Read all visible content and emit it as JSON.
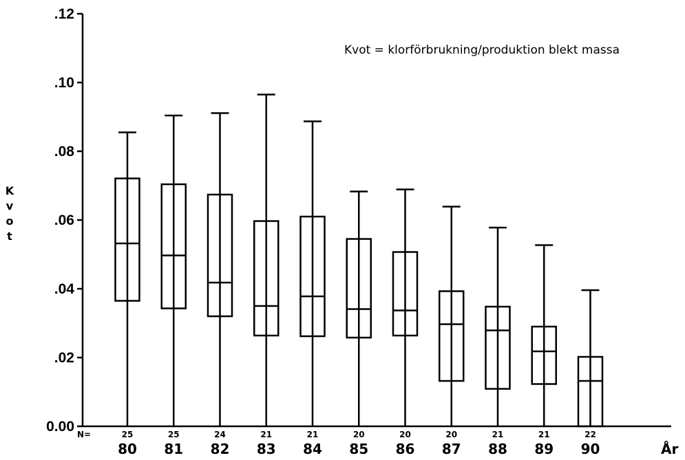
{
  "chart_data": {
    "type": "box",
    "annotation": "Kvot = klorförbrukning/produktion blekt massa",
    "ylabel": "Kvot",
    "xlabel": "År",
    "n_prefix": "N=",
    "ylim": [
      0,
      0.12
    ],
    "yticks": [
      {
        "value": 0.0,
        "label": "0.00"
      },
      {
        "value": 0.02,
        "label": ".02"
      },
      {
        "value": 0.04,
        "label": ".04"
      },
      {
        "value": 0.06,
        "label": ".06"
      },
      {
        "value": 0.08,
        "label": ".08"
      },
      {
        "value": 0.1,
        "label": ".10"
      },
      {
        "value": 0.12,
        "label": ".12"
      }
    ],
    "categories": [
      "80",
      "81",
      "82",
      "83",
      "84",
      "85",
      "86",
      "87",
      "88",
      "89",
      "90"
    ],
    "n": [
      "25",
      "25",
      "24",
      "21",
      "21",
      "20",
      "20",
      "20",
      "21",
      "21",
      "22"
    ],
    "boxes": [
      {
        "min": 0.0,
        "q1": 0.0365,
        "median": 0.0532,
        "q3": 0.0721,
        "max": 0.0855
      },
      {
        "min": 0.0,
        "q1": 0.0343,
        "median": 0.0497,
        "q3": 0.0704,
        "max": 0.0904
      },
      {
        "min": 0.0,
        "q1": 0.032,
        "median": 0.0418,
        "q3": 0.0674,
        "max": 0.0911
      },
      {
        "min": 0.0,
        "q1": 0.0264,
        "median": 0.035,
        "q3": 0.0597,
        "max": 0.0965
      },
      {
        "min": 0.0,
        "q1": 0.0262,
        "median": 0.0378,
        "q3": 0.061,
        "max": 0.0887
      },
      {
        "min": 0.0,
        "q1": 0.0258,
        "median": 0.0341,
        "q3": 0.0545,
        "max": 0.0683
      },
      {
        "min": 0.0,
        "q1": 0.0264,
        "median": 0.0337,
        "q3": 0.0507,
        "max": 0.0689
      },
      {
        "min": 0.0,
        "q1": 0.0132,
        "median": 0.0297,
        "q3": 0.0393,
        "max": 0.0639
      },
      {
        "min": 0.0,
        "q1": 0.0109,
        "median": 0.0279,
        "q3": 0.0348,
        "max": 0.0578
      },
      {
        "min": 0.0,
        "q1": 0.0123,
        "median": 0.0218,
        "q3": 0.029,
        "max": 0.0527
      },
      {
        "min": 0.0,
        "q1": 0.0,
        "median": 0.0132,
        "q3": 0.0202,
        "max": 0.0396
      }
    ]
  }
}
